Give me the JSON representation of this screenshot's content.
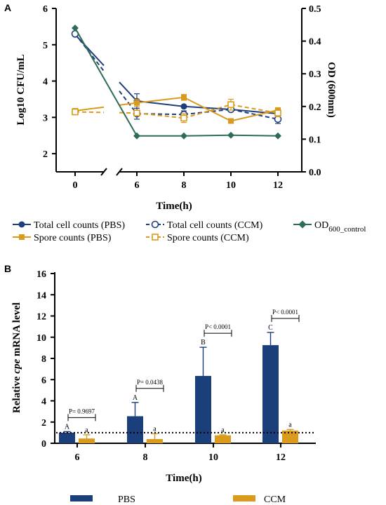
{
  "chart_data": [
    {
      "panel": "A",
      "type": "line",
      "xlabel": "Time(h)",
      "ylabel": "Log10 CFU/mL",
      "y2label": "OD (600nm)",
      "x_ticks": [
        "0",
        "6",
        "8",
        "10",
        "12"
      ],
      "y_ticks": [
        "2",
        "3",
        "4",
        "5",
        "6"
      ],
      "y2_ticks": [
        "0.0",
        "0.1",
        "0.2",
        "0.3",
        "0.4",
        "0.5"
      ],
      "ylim": [
        1.5,
        6
      ],
      "y2lim": [
        0,
        0.5
      ],
      "x_axis_break": "between 0 and 6",
      "series": [
        {
          "name": "Total cell counts (PBS)",
          "color": "#1f3f7a",
          "line": "solid",
          "marker": "filled-circle",
          "axis": "left",
          "x": [
            0,
            6,
            8,
            10,
            12
          ],
          "y": [
            5.28,
            3.45,
            3.3,
            3.22,
            3.1
          ],
          "err": [
            0.05,
            0.2,
            0.05,
            0.05,
            0.05
          ]
        },
        {
          "name": "Total cell counts (CCM)",
          "color": "#1f3f7a",
          "line": "dashed",
          "marker": "open-circle",
          "axis": "left",
          "x": [
            0,
            6,
            8,
            10,
            12
          ],
          "y": [
            5.3,
            3.1,
            3.08,
            3.22,
            2.95
          ],
          "err": [
            0.05,
            0.15,
            0.1,
            0.05,
            0.12
          ]
        },
        {
          "name": "Spore counts (PBS)",
          "color": "#d99a1e",
          "line": "solid",
          "marker": "filled-square",
          "axis": "left",
          "x": [
            0,
            6,
            8,
            10,
            12
          ],
          "y": [
            3.18,
            3.4,
            3.55,
            2.9,
            3.2
          ],
          "err": [
            0.03,
            0.1,
            0.08,
            0.05,
            0.05
          ]
        },
        {
          "name": "Spore counts (CCM)",
          "color": "#d99a1e",
          "line": "dashed",
          "marker": "open-square",
          "axis": "left",
          "x": [
            0,
            6,
            8,
            10,
            12
          ],
          "y": [
            3.15,
            3.12,
            2.98,
            3.35,
            3.12
          ],
          "err": [
            0.03,
            0.08,
            0.12,
            0.15,
            0.1
          ]
        },
        {
          "name": "OD_control",
          "legend_main": "OD",
          "legend_sub": "600_control",
          "color": "#2e6b58",
          "line": "solid",
          "marker": "filled-diamond",
          "axis": "right",
          "x": [
            0,
            6,
            8,
            10,
            12
          ],
          "y": [
            0.44,
            0.11,
            0.11,
            0.112,
            0.11
          ]
        }
      ]
    },
    {
      "panel": "B",
      "type": "bar",
      "xlabel": "Time(h)",
      "ylabel_prefix": "Relative ",
      "ylabel_italic": "cpe",
      "ylabel_suffix": " mRNA level",
      "categories": [
        "6",
        "8",
        "10",
        "12"
      ],
      "y_ticks": [
        "0",
        "2",
        "4",
        "6",
        "8",
        "10",
        "12",
        "14",
        "16"
      ],
      "ylim": [
        0,
        16
      ],
      "reference_line": 1.0,
      "series": [
        {
          "name": "PBS",
          "color": "#1a3f7a",
          "values": [
            1.0,
            2.55,
            6.35,
            9.25
          ],
          "err": [
            0.1,
            1.3,
            2.7,
            1.2
          ],
          "letters": [
            "A",
            "A",
            "B",
            "C"
          ]
        },
        {
          "name": "CCM",
          "color": "#d99a1e",
          "values": [
            0.45,
            0.4,
            0.75,
            1.2
          ],
          "err": [
            0.35,
            0.5,
            0.05,
            0.1
          ],
          "letters": [
            "a",
            "a",
            "a",
            "a"
          ]
        }
      ],
      "pvalues": [
        "P= 0.9697",
        "P= 0.0438",
        "P< 0.0001",
        "P< 0.0001"
      ]
    }
  ]
}
